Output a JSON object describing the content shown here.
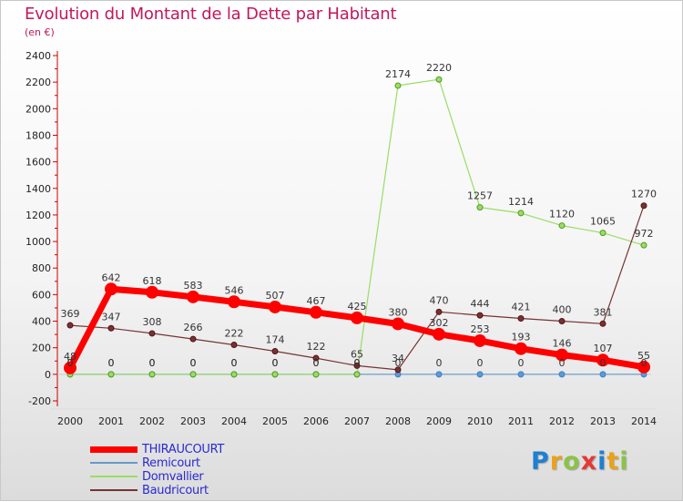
{
  "title": "Evolution du Montant de la Dette par Habitant",
  "unit": "(en €)",
  "logo_text": "Proxiti",
  "logo_colors": [
    "#1f7fd1",
    "#e9a21a",
    "#8bc34a",
    "#e53935",
    "#1f7fd1",
    "#e9a21a",
    "#8bc34a"
  ],
  "chart_data": {
    "type": "line",
    "title": "Evolution du Montant de la Dette par Habitant",
    "ylabel": "(en €)",
    "xlabel": "",
    "ylim": [
      -200,
      2400
    ],
    "yticks": [
      -200,
      0,
      200,
      400,
      600,
      800,
      1000,
      1200,
      1400,
      1600,
      1800,
      2000,
      2200,
      2400
    ],
    "x": [
      "2000",
      "2001",
      "2002",
      "2003",
      "2004",
      "2005",
      "2006",
      "2007",
      "2008",
      "2009",
      "2010",
      "2011",
      "2012",
      "2013",
      "2014"
    ],
    "grid": false,
    "legend_position": "bottom-left",
    "series": [
      {
        "name": "THIRAUCOURT",
        "color": "#ff0000",
        "values": [
          48,
          642,
          618,
          583,
          546,
          507,
          467,
          425,
          380,
          302,
          253,
          193,
          146,
          107,
          55
        ],
        "labels": [
          "48",
          "642",
          "618",
          "583",
          "546",
          "507",
          "467",
          "425",
          "380",
          "302",
          "253",
          "193",
          "146",
          "107",
          "55"
        ]
      },
      {
        "name": "Remicourt",
        "color": "#6699cc",
        "values": [
          0,
          0,
          0,
          0,
          0,
          0,
          0,
          0,
          0,
          0,
          0,
          0,
          0,
          0,
          0
        ],
        "labels": [
          "0",
          "0",
          "0",
          "0",
          "0",
          "0",
          "0",
          "0",
          "0",
          "0",
          "0",
          "0",
          "0",
          "0",
          "0"
        ]
      },
      {
        "name": "Domvallier",
        "color": "#99dd66",
        "values": [
          0,
          0,
          0,
          0,
          0,
          0,
          0,
          0,
          2174,
          2220,
          1257,
          1214,
          1120,
          1065,
          972
        ],
        "labels": [
          "0",
          "0",
          "0",
          "0",
          "0",
          "0",
          "0",
          "0",
          "2174",
          "2220",
          "1257",
          "1214",
          "1120",
          "1065",
          "972"
        ]
      },
      {
        "name": "Baudricourt",
        "color": "#773333",
        "values": [
          369,
          347,
          308,
          266,
          222,
          174,
          122,
          65,
          34,
          470,
          444,
          421,
          400,
          381,
          1270
        ],
        "labels": [
          "369",
          "347",
          "308",
          "266",
          "222",
          "174",
          "122",
          "65",
          "34",
          "470",
          "444",
          "421",
          "400",
          "381",
          "1270"
        ]
      }
    ]
  }
}
